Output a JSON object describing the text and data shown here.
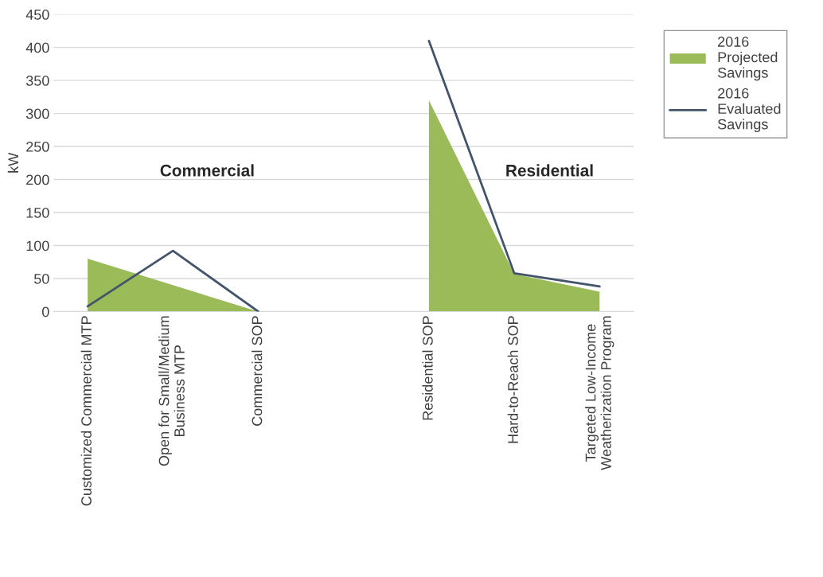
{
  "chart_data": {
    "type": "area",
    "ylabel": "kW",
    "categories": [
      "Customized Commercial MTP",
      "Open for Small/Medium\nBusiness MTP",
      "Commercial SOP",
      null,
      "Residential SOP",
      "Hard-to-Reach SOP",
      "Targeted Low-Income\nWeatherization Program"
    ],
    "series": [
      {
        "name": "2016 Projected Savings",
        "color": "#9bbb59",
        "values": [
          80,
          40,
          0,
          null,
          320,
          57,
          30
        ]
      },
      {
        "name": "2016 Evaluated Savings",
        "color": "#44546a",
        "type": "line",
        "values": [
          8,
          92,
          0,
          null,
          410,
          58,
          38
        ]
      }
    ],
    "ylim": [
      0,
      450
    ],
    "yticks": [
      0,
      50,
      100,
      150,
      200,
      250,
      300,
      350,
      400,
      450
    ],
    "grid": "y",
    "legend": "top right",
    "annotations": [
      "Commercial",
      "Residential"
    ]
  }
}
